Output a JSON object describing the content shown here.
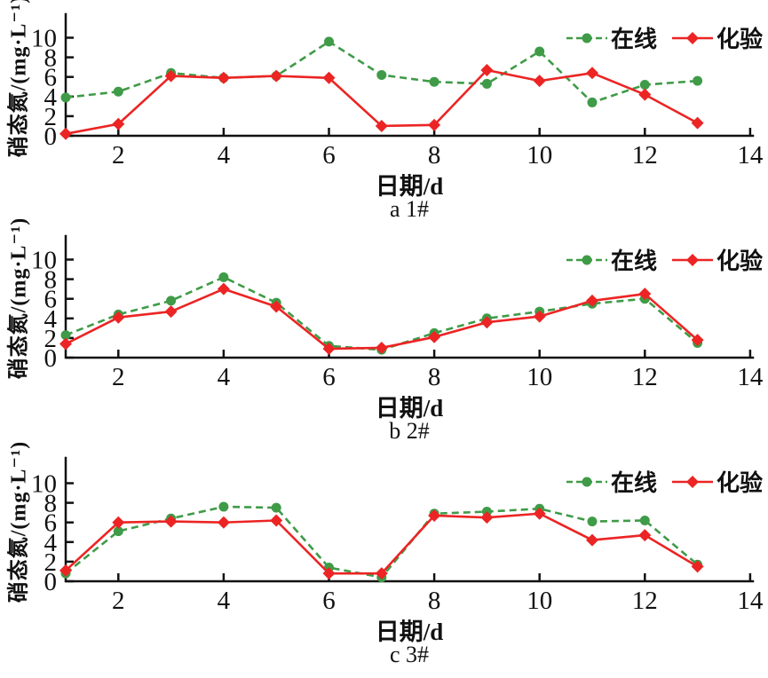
{
  "figure": {
    "background": "#ffffff",
    "axis_color": "#111111",
    "text_color": "#111111"
  },
  "chart_data": [
    {
      "type": "line",
      "caption": "a 1#",
      "xlabel": "日期/d",
      "ylabel": "硝态氮/(mg·L⁻¹)",
      "x": [
        1,
        2,
        3,
        4,
        5,
        6,
        7,
        8,
        9,
        10,
        11,
        12,
        13
      ],
      "xlim": [
        1,
        14
      ],
      "ylim": [
        0,
        12.4
      ],
      "xticks": [
        2,
        4,
        6,
        8,
        10,
        12,
        14
      ],
      "yticks": [
        0,
        2,
        4,
        6,
        8,
        10
      ],
      "grid": false,
      "legend_position": "top-right",
      "series": [
        {
          "key": "online",
          "name": "在线",
          "color": "#3f9b47",
          "line_style": "dashed",
          "marker": "circle",
          "values": [
            3.9,
            4.5,
            6.4,
            5.9,
            6.1,
            9.6,
            6.2,
            5.5,
            5.3,
            8.6,
            3.4,
            5.2,
            5.6
          ]
        },
        {
          "key": "lab",
          "name": "化验",
          "color": "#ec2424",
          "line_style": "solid",
          "marker": "diamond",
          "values": [
            0.2,
            1.2,
            6.1,
            5.9,
            6.1,
            5.9,
            1.0,
            1.1,
            6.7,
            5.6,
            6.4,
            4.2,
            1.3
          ]
        }
      ]
    },
    {
      "type": "line",
      "caption": "b 2#",
      "xlabel": "日期/d",
      "ylabel": "硝态氮/(mg·L⁻¹)",
      "x": [
        1,
        2,
        3,
        4,
        5,
        6,
        7,
        8,
        9,
        10,
        11,
        12,
        13
      ],
      "xlim": [
        1,
        14
      ],
      "ylim": [
        0,
        12.4
      ],
      "xticks": [
        2,
        4,
        6,
        8,
        10,
        12,
        14
      ],
      "yticks": [
        0,
        2,
        4,
        6,
        8,
        10
      ],
      "grid": false,
      "legend_position": "top-right",
      "series": [
        {
          "key": "online",
          "name": "在线",
          "color": "#3f9b47",
          "line_style": "dashed",
          "marker": "circle",
          "values": [
            2.3,
            4.4,
            5.8,
            8.2,
            5.6,
            1.2,
            0.8,
            2.5,
            4.0,
            4.7,
            5.5,
            6.0,
            1.5
          ]
        },
        {
          "key": "lab",
          "name": "化验",
          "color": "#ec2424",
          "line_style": "solid",
          "marker": "diamond",
          "values": [
            1.4,
            4.1,
            4.7,
            7.0,
            5.2,
            0.9,
            1.0,
            2.1,
            3.6,
            4.2,
            5.8,
            6.5,
            1.8
          ]
        }
      ]
    },
    {
      "type": "line",
      "caption": "c 3#",
      "xlabel": "日期/d",
      "ylabel": "硝态氮/(mg·L⁻¹)",
      "x": [
        1,
        2,
        3,
        4,
        5,
        6,
        7,
        8,
        9,
        10,
        11,
        12,
        13
      ],
      "xlim": [
        1,
        14
      ],
      "ylim": [
        0,
        12.4
      ],
      "xticks": [
        2,
        4,
        6,
        8,
        10,
        12,
        14
      ],
      "yticks": [
        0,
        2,
        4,
        6,
        8,
        10
      ],
      "grid": false,
      "legend_position": "top-right",
      "series": [
        {
          "key": "online",
          "name": "在线",
          "color": "#3f9b47",
          "line_style": "dashed",
          "marker": "circle",
          "values": [
            0.8,
            5.1,
            6.4,
            7.6,
            7.5,
            1.4,
            0.4,
            6.9,
            7.1,
            7.4,
            6.1,
            6.2,
            1.7
          ]
        },
        {
          "key": "lab",
          "name": "化验",
          "color": "#ec2424",
          "line_style": "solid",
          "marker": "diamond",
          "values": [
            1.1,
            6.0,
            6.1,
            6.0,
            6.2,
            0.8,
            0.8,
            6.7,
            6.5,
            6.9,
            4.2,
            4.7,
            1.5
          ]
        }
      ]
    }
  ]
}
